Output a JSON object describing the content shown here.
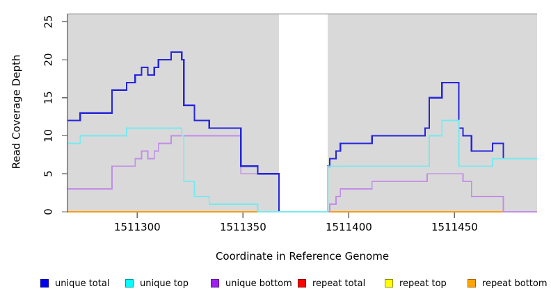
{
  "chart_data": {
    "type": "line",
    "subtype": "step-after-coverage-plot",
    "title": "",
    "xlabel": "Coordinate in Reference Genome",
    "ylabel": "Read Coverage Depth",
    "x_ticks": [
      1511300,
      1511350,
      1511400,
      1511450
    ],
    "y_ticks": [
      0,
      5,
      10,
      15,
      20,
      25
    ],
    "xlim": [
      1511267,
      1511489
    ],
    "ylim": [
      0,
      26
    ],
    "grid": "off",
    "plot_background": "#d9d9d9",
    "gap_region": {
      "x_start": 1511367,
      "x_end": 1511390,
      "color": "#ffffff",
      "note": "no-coverage masked band"
    },
    "top_border_color": "#9a9a9a",
    "axis_color": "#333333",
    "tick_color": "#666666",
    "legend_position": "bottom",
    "legend": [
      {
        "label": "unique total",
        "fill": "#0000f0",
        "border": "#000090"
      },
      {
        "label": "unique top",
        "fill": "#00ffff",
        "border": "#009999"
      },
      {
        "label": "unique bottom",
        "fill": "#a020f0",
        "border": "#5c1090"
      },
      {
        "label": "repeat total",
        "fill": "#ff0000",
        "border": "#8b0000"
      },
      {
        "label": "repeat top",
        "fill": "#ffff00",
        "border": "#909000"
      },
      {
        "label": "repeat bottom",
        "fill": "#ffa500",
        "border": "#b06000"
      }
    ],
    "series": [
      {
        "name": "repeat total",
        "color": "#e02020",
        "width": 1.2,
        "points": [
          [
            1511267,
            0
          ]
        ]
      },
      {
        "name": "repeat top",
        "color": "#ffe800",
        "width": 1.2,
        "points": [
          [
            1511267,
            0
          ]
        ]
      },
      {
        "name": "repeat bottom",
        "color": "#ff9d00",
        "width": 2,
        "points": [
          [
            1511267,
            0
          ]
        ]
      },
      {
        "name": "unique bottom",
        "color": "#c18ee6",
        "width": 1.8,
        "points": [
          [
            1511267,
            3
          ],
          [
            1511288,
            6
          ],
          [
            1511299,
            7
          ],
          [
            1511302,
            8
          ],
          [
            1511305,
            7
          ],
          [
            1511308,
            8
          ],
          [
            1511310,
            9
          ],
          [
            1511316,
            10
          ],
          [
            1511349,
            5
          ],
          [
            1511367,
            0
          ],
          [
            1511391,
            1
          ],
          [
            1511394,
            2
          ],
          [
            1511396,
            3
          ],
          [
            1511411,
            4
          ],
          [
            1511437,
            5
          ],
          [
            1511454,
            4
          ],
          [
            1511458,
            2
          ],
          [
            1511473,
            0
          ]
        ]
      },
      {
        "name": "unique total",
        "color": "#2525dc",
        "width": 2.2,
        "points": [
          [
            1511267,
            12
          ],
          [
            1511273,
            13
          ],
          [
            1511288,
            16
          ],
          [
            1511295,
            17
          ],
          [
            1511299,
            18
          ],
          [
            1511302,
            19
          ],
          [
            1511305,
            18
          ],
          [
            1511308,
            19
          ],
          [
            1511310,
            20
          ],
          [
            1511316,
            21
          ],
          [
            1511321,
            20
          ],
          [
            1511322,
            14
          ],
          [
            1511327,
            12
          ],
          [
            1511334,
            11
          ],
          [
            1511349,
            6
          ],
          [
            1511357,
            5
          ],
          [
            1511367,
            0
          ],
          [
            1511390,
            6
          ],
          [
            1511391,
            7
          ],
          [
            1511394,
            8
          ],
          [
            1511396,
            9
          ],
          [
            1511411,
            10
          ],
          [
            1511436,
            11
          ],
          [
            1511438,
            15
          ],
          [
            1511444,
            17
          ],
          [
            1511452,
            11
          ],
          [
            1511454,
            10
          ],
          [
            1511458,
            8
          ],
          [
            1511468,
            9
          ],
          [
            1511473,
            7
          ]
        ]
      },
      {
        "name": "unique top",
        "color": "#76e9f0",
        "width": 1.8,
        "points": [
          [
            1511267,
            9
          ],
          [
            1511273,
            10
          ],
          [
            1511295,
            11
          ],
          [
            1511321,
            10
          ],
          [
            1511322,
            4
          ],
          [
            1511327,
            2
          ],
          [
            1511334,
            1
          ],
          [
            1511357,
            0
          ],
          [
            1511390,
            6
          ],
          [
            1511438,
            10
          ],
          [
            1511444,
            12
          ],
          [
            1511452,
            6
          ],
          [
            1511468,
            7
          ]
        ]
      }
    ]
  },
  "legend_layout_lefts": [
    58,
    180,
    303,
    428,
    553,
    672
  ]
}
